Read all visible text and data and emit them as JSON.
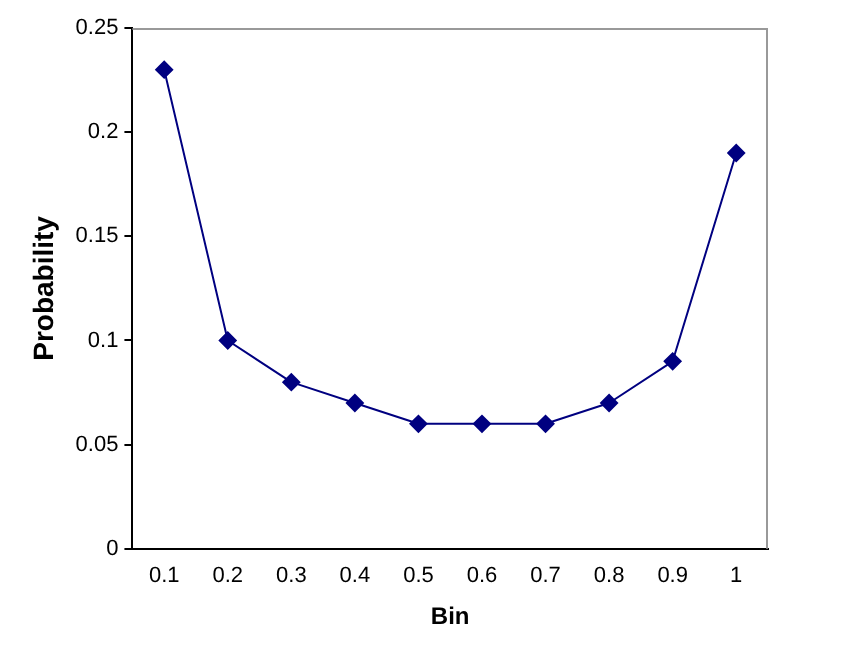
{
  "chart_data": {
    "type": "line",
    "xlabel": "Bin",
    "ylabel": "Probability",
    "categories": [
      "0.1",
      "0.2",
      "0.3",
      "0.4",
      "0.5",
      "0.6",
      "0.7",
      "0.8",
      "0.9",
      "1"
    ],
    "series": [
      {
        "color": "#000080",
        "values": [
          0.23,
          0.1,
          0.08,
          0.07,
          0.06,
          0.06,
          0.06,
          0.07,
          0.09,
          0.19
        ]
      }
    ],
    "ylim": [
      0,
      0.25
    ],
    "yticks": [
      0,
      0.05,
      0.1,
      0.15,
      0.2,
      0.25
    ],
    "grid": false,
    "legend": false,
    "marker": "diamond",
    "line_style": "solid"
  }
}
